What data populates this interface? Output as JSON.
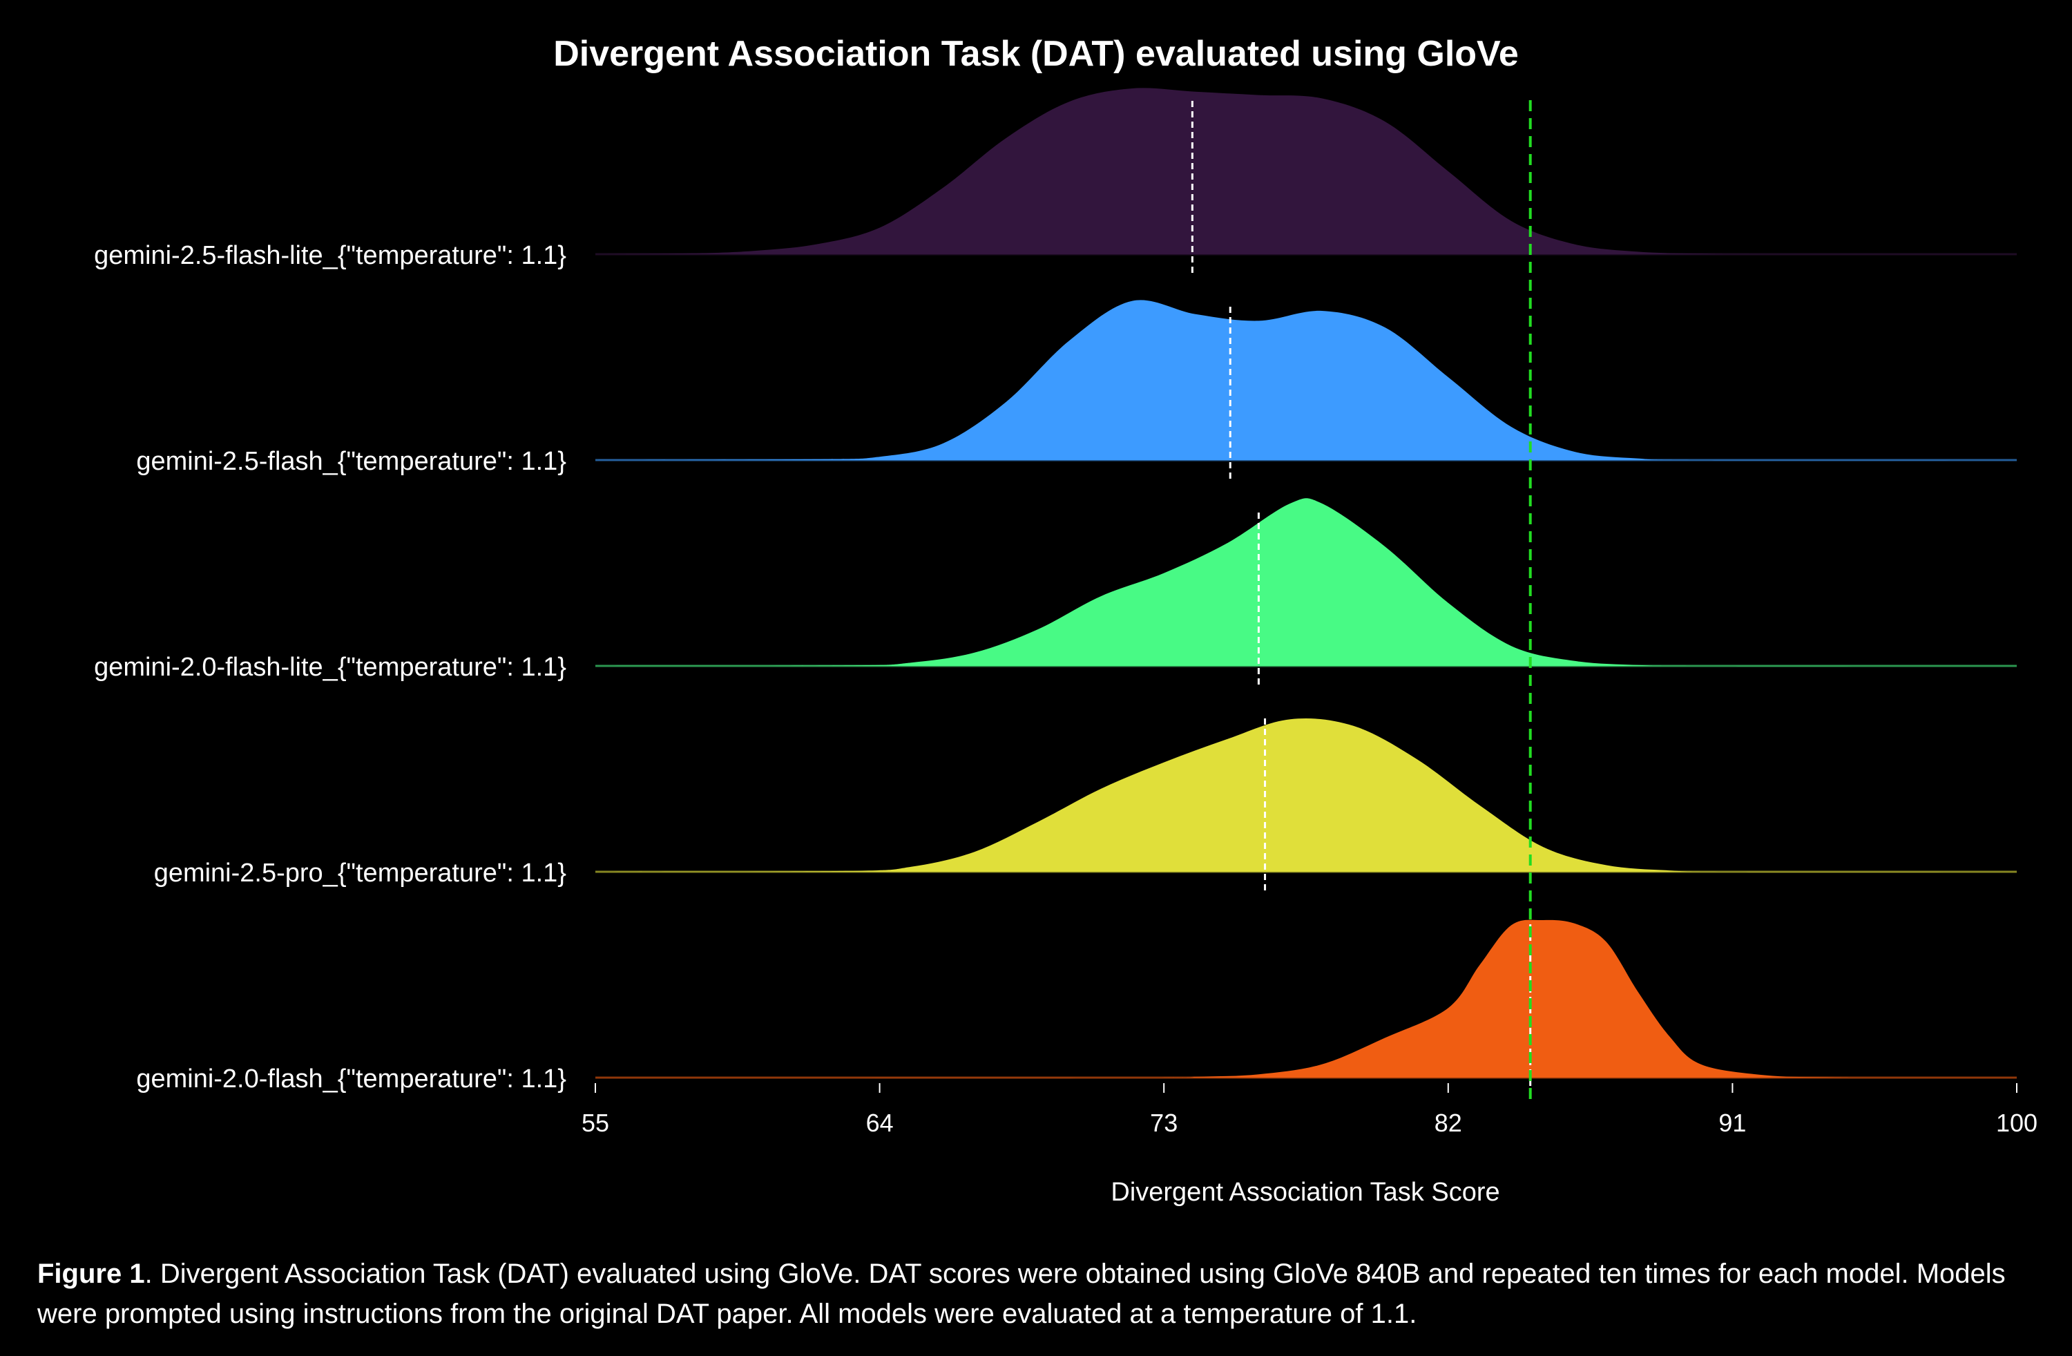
{
  "chart_data": {
    "type": "ridgeline",
    "title": "Divergent Association Task (DAT) evaluated using GloVe",
    "xlabel": "Divergent Association Task Score",
    "xlim": [
      55,
      100
    ],
    "xticks": [
      "55",
      "64",
      "73",
      "82",
      "91",
      "100"
    ],
    "reference_line": {
      "x": 84.6,
      "color": "#22dd22",
      "style": "dashed"
    },
    "series": [
      {
        "name": "gemini-2.5-flash-lite_{\"temperature\": 1.1}",
        "color": "#32153d",
        "mean": 73.9,
        "density": [
          [
            55,
            0
          ],
          [
            58,
            0.005
          ],
          [
            60,
            0.02
          ],
          [
            62,
            0.06
          ],
          [
            64,
            0.16
          ],
          [
            66,
            0.4
          ],
          [
            68,
            0.7
          ],
          [
            70,
            0.92
          ],
          [
            72,
            1.0
          ],
          [
            74,
            0.98
          ],
          [
            76,
            0.96
          ],
          [
            78,
            0.94
          ],
          [
            80,
            0.8
          ],
          [
            82,
            0.5
          ],
          [
            84,
            0.2
          ],
          [
            86,
            0.06
          ],
          [
            88,
            0.015
          ],
          [
            90,
            0.003
          ],
          [
            92,
            0
          ],
          [
            100,
            0
          ]
        ]
      },
      {
        "name": "gemini-2.5-flash_{\"temperature\": 1.1}",
        "color": "#3d9bff",
        "mean": 75.1,
        "density": [
          [
            55,
            0
          ],
          [
            62,
            0.005
          ],
          [
            64,
            0.02
          ],
          [
            66,
            0.1
          ],
          [
            68,
            0.35
          ],
          [
            70,
            0.72
          ],
          [
            72,
            0.96
          ],
          [
            74,
            0.88
          ],
          [
            76,
            0.84
          ],
          [
            78,
            0.9
          ],
          [
            80,
            0.8
          ],
          [
            82,
            0.5
          ],
          [
            84,
            0.2
          ],
          [
            86,
            0.05
          ],
          [
            88,
            0.01
          ],
          [
            90,
            0
          ],
          [
            100,
            0
          ]
        ]
      },
      {
        "name": "gemini-2.0-flash-lite_{\"temperature\": 1.1}",
        "color": "#48fa85",
        "mean": 76.0,
        "density": [
          [
            55,
            0
          ],
          [
            63,
            0.003
          ],
          [
            65,
            0.02
          ],
          [
            67,
            0.08
          ],
          [
            69,
            0.22
          ],
          [
            71,
            0.42
          ],
          [
            73,
            0.56
          ],
          [
            75,
            0.74
          ],
          [
            77,
            0.98
          ],
          [
            78,
            0.98
          ],
          [
            80,
            0.72
          ],
          [
            82,
            0.38
          ],
          [
            84,
            0.12
          ],
          [
            86,
            0.03
          ],
          [
            88,
            0.005
          ],
          [
            90,
            0
          ],
          [
            100,
            0
          ]
        ]
      },
      {
        "name": "gemini-2.5-pro_{\"temperature\": 1.1}",
        "color": "#e0df3a",
        "mean": 76.2,
        "density": [
          [
            55,
            0
          ],
          [
            63,
            0.005
          ],
          [
            65,
            0.03
          ],
          [
            67,
            0.12
          ],
          [
            69,
            0.3
          ],
          [
            71,
            0.5
          ],
          [
            73,
            0.66
          ],
          [
            75,
            0.8
          ],
          [
            77,
            0.92
          ],
          [
            79,
            0.88
          ],
          [
            81,
            0.68
          ],
          [
            83,
            0.4
          ],
          [
            85,
            0.15
          ],
          [
            87,
            0.04
          ],
          [
            89,
            0.008
          ],
          [
            91,
            0
          ],
          [
            100,
            0
          ]
        ]
      },
      {
        "name": "gemini-2.0-flash_{\"temperature\": 1.1}",
        "color": "#f05d12",
        "mean": 84.6,
        "density": [
          [
            55,
            0
          ],
          [
            72,
            0
          ],
          [
            74,
            0.005
          ],
          [
            76,
            0.02
          ],
          [
            78,
            0.08
          ],
          [
            80,
            0.24
          ],
          [
            82,
            0.42
          ],
          [
            83,
            0.68
          ],
          [
            84,
            0.92
          ],
          [
            85,
            0.95
          ],
          [
            86,
            0.93
          ],
          [
            87,
            0.82
          ],
          [
            88,
            0.52
          ],
          [
            89,
            0.25
          ],
          [
            90,
            0.08
          ],
          [
            92,
            0.015
          ],
          [
            94,
            0.002
          ],
          [
            96,
            0
          ],
          [
            100,
            0
          ]
        ]
      }
    ]
  },
  "caption": {
    "label": "Figure 1",
    "text": ". Divergent Association Task (DAT) evaluated using GloVe. DAT scores were obtained using GloVe 840B and repeated ten times for each model. Models were prompted using instructions from the original DAT paper. All models were evaluated at a temperature of 1.1."
  }
}
